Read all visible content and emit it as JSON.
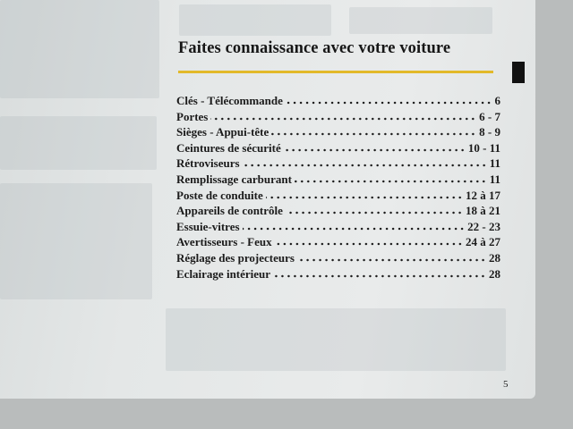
{
  "header": {
    "title": "Faites connaissance avec votre voiture"
  },
  "toc": [
    {
      "label": "Clés - Télécommande",
      "page": "6"
    },
    {
      "label": "Portes",
      "page": "6 - 7"
    },
    {
      "label": "Sièges - Appui-tête",
      "page": "8 - 9"
    },
    {
      "label": "Ceintures de sécurité",
      "page": "10 - 11"
    },
    {
      "label": "Rétroviseurs",
      "page": "11"
    },
    {
      "label": "Remplissage carburant",
      "page": "11"
    },
    {
      "label": "Poste de conduite",
      "page": "12 à 17"
    },
    {
      "label": "Appareils de contrôle",
      "page": "18 à 21"
    },
    {
      "label": "Essuie-vitres",
      "page": "22 - 23"
    },
    {
      "label": "Avertisseurs - Feux",
      "page": "24 à 27"
    },
    {
      "label": "Réglage des projecteurs",
      "page": "28"
    },
    {
      "label": "Eclairage intérieur",
      "page": "28"
    }
  ],
  "footer": {
    "page_number": "5"
  }
}
